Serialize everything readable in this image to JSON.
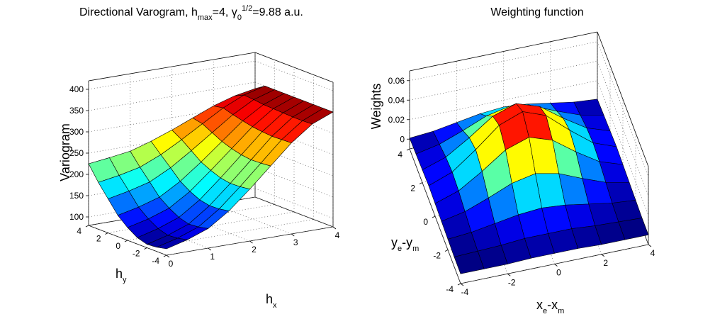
{
  "chart_data": [
    {
      "type": "surface",
      "title": [
        "Directional Varogram, h",
        "max",
        "=4, γ",
        "0",
        "1/2",
        "=9.88 a.u."
      ],
      "xlabel": [
        "h",
        "x"
      ],
      "ylabel": [
        "h",
        "y"
      ],
      "zlabel": "Variogram",
      "x": [
        0,
        0.5,
        1,
        1.5,
        2,
        2.5,
        3,
        3.5,
        4
      ],
      "y": [
        -4,
        -3,
        -2,
        -1,
        0,
        1,
        2,
        3,
        4
      ],
      "z": [
        [
          95,
          108,
          126,
          159,
          202,
          248,
          294,
          330,
          350
        ],
        [
          90,
          103,
          121,
          155,
          199,
          246,
          293,
          329,
          350
        ],
        [
          88,
          101,
          119,
          154,
          198,
          245,
          292,
          329,
          350
        ],
        [
          95,
          108,
          126,
          159,
          202,
          248,
          294,
          330,
          350
        ],
        [
          110,
          122,
          139,
          170,
          211,
          254,
          297,
          331,
          350
        ],
        [
          130,
          141,
          156,
          185,
          222,
          262,
          302,
          332,
          350
        ],
        [
          160,
          170,
          183,
          208,
          240,
          274,
          308,
          335,
          350
        ],
        [
          190,
          198,
          209,
          230,
          257,
          286,
          315,
          337,
          350
        ],
        [
          225,
          231,
          238,
          253,
          271,
          291,
          311,
          326,
          335
        ]
      ],
      "xlim": [
        0,
        4
      ],
      "ylim": [
        -4,
        4
      ],
      "zlim": [
        80,
        420
      ],
      "xticks": [
        0,
        1,
        2,
        3,
        4
      ],
      "yticks": [
        -4,
        -2,
        0,
        2,
        4
      ],
      "zticks": [
        100,
        150,
        200,
        250,
        300,
        350,
        400
      ],
      "colormap": "jet",
      "grid": true
    },
    {
      "type": "surface",
      "title": "Weighting function",
      "xlabel": [
        "x",
        "e",
        "-x",
        "m"
      ],
      "ylabel": [
        "y",
        "e",
        "-y",
        "m"
      ],
      "zlabel": "Weights",
      "x": [
        -4,
        -3,
        -2,
        -1,
        0,
        1,
        2,
        3,
        4
      ],
      "y": [
        -4,
        -3,
        -2,
        -1,
        0,
        1,
        2,
        3,
        4
      ],
      "z": [
        [
          0,
          0,
          0,
          0.001,
          0.001,
          0.001,
          0,
          0,
          0
        ],
        [
          0,
          0.001,
          0.002,
          0.004,
          0.004,
          0.004,
          0.002,
          0.001,
          0
        ],
        [
          0.001,
          0.003,
          0.007,
          0.011,
          0.013,
          0.011,
          0.007,
          0.003,
          0.001
        ],
        [
          0.002,
          0.007,
          0.016,
          0.026,
          0.031,
          0.026,
          0.016,
          0.007,
          0.002
        ],
        [
          0.003,
          0.011,
          0.026,
          0.043,
          0.051,
          0.043,
          0.026,
          0.011,
          0.003
        ],
        [
          0.004,
          0.013,
          0.031,
          0.051,
          0.06,
          0.051,
          0.031,
          0.013,
          0.004
        ],
        [
          0.003,
          0.011,
          0.026,
          0.043,
          0.051,
          0.043,
          0.026,
          0.011,
          0.003
        ],
        [
          0.002,
          0.007,
          0.016,
          0.026,
          0.031,
          0.026,
          0.016,
          0.007,
          0.002
        ],
        [
          0.001,
          0.003,
          0.007,
          0.011,
          0.013,
          0.011,
          0.007,
          0.003,
          0.001
        ]
      ],
      "xlim": [
        -4,
        4
      ],
      "ylim": [
        -4,
        4
      ],
      "zlim": [
        -0.01,
        0.07
      ],
      "xticks": [
        -4,
        -2,
        0,
        2,
        4
      ],
      "yticks": [
        -4,
        -2,
        0,
        2,
        4
      ],
      "zticks": [
        0,
        0.02,
        0.04,
        0.06
      ],
      "colormap": "jet",
      "grid": true
    }
  ]
}
